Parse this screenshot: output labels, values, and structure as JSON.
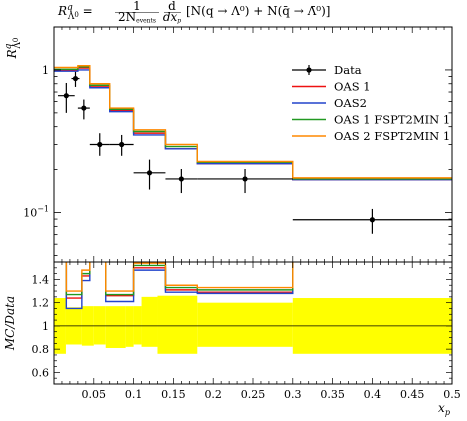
{
  "chart_data": [
    {
      "type": "line",
      "subtype": "step-histogram-with-data-points",
      "title": "R^q_{Λ0} = 1/(2N_events) dσ/dx_p [N(q→Λ0)+N(q̄→Λ̄0)]",
      "title_parts": {
        "lhs_main": "R",
        "lhs_sup": "q",
        "lhs_sub": "Λ",
        "lhs_subsup": "0",
        "eq": " = ",
        "frac_num": "1",
        "frac_den": "2N",
        "frac_den_sub": "events",
        "d_num": "d",
        "d_den": "dx",
        "d_den_sub": "p",
        "bracket_text": "[N(q → Λ⁰) + N(q̄ → Λ̄⁰)]"
      },
      "ylabel": "R^q_{Λ0}",
      "ylabel_main": "R",
      "ylabel_sup": "q",
      "ylabel_sub": "Λ",
      "ylabel_subsup": "0",
      "yscale": "log",
      "ylim": [
        0.045,
        2.0
      ],
      "xlim": [
        0.0,
        0.5
      ],
      "y_ticks": [
        {
          "value": 1.0,
          "label": "1"
        },
        {
          "value": 0.1,
          "label": "10",
          "exp": "−1"
        }
      ],
      "legend_placement": "top-right",
      "bin_edges": [
        0.0,
        0.03,
        0.045,
        0.07,
        0.1,
        0.14,
        0.18,
        0.3,
        0.5
      ],
      "data": {
        "name": "Data",
        "color": "#000000",
        "points": [
          {
            "x": 0.0155,
            "y": 0.66,
            "xerr": [
              0.0105,
              0.0105
            ],
            "yerr": [
              0.16,
              0.15
            ]
          },
          {
            "x": 0.027,
            "y": 0.87,
            "xerr": [
              0.005,
              0.005
            ],
            "yerr": [
              0.11,
              0.1
            ]
          },
          {
            "x": 0.0375,
            "y": 0.54,
            "xerr": [
              0.0075,
              0.0075
            ],
            "yerr": [
              0.09,
              0.08
            ]
          },
          {
            "x": 0.0575,
            "y": 0.3,
            "xerr": [
              0.0125,
              0.0125
            ],
            "yerr": [
              0.05,
              0.06
            ]
          },
          {
            "x": 0.085,
            "y": 0.3,
            "xerr": [
              0.015,
              0.015
            ],
            "yerr": [
              0.05,
              0.05
            ]
          },
          {
            "x": 0.12,
            "y": 0.19,
            "xerr": [
              0.02,
              0.02
            ],
            "yerr": [
              0.045,
              0.045
            ]
          },
          {
            "x": 0.16,
            "y": 0.172,
            "xerr": [
              0.02,
              0.02
            ],
            "yerr": [
              0.035,
              0.03
            ]
          },
          {
            "x": 0.24,
            "y": 0.172,
            "xerr": [
              0.06,
              0.06
            ],
            "yerr": [
              0.035,
              0.03
            ]
          },
          {
            "x": 0.4,
            "y": 0.089,
            "xerr": [
              0.1,
              0.1
            ],
            "yerr": [
              0.018,
              0.017
            ]
          }
        ]
      },
      "series": [
        {
          "name": "OAS 1",
          "color": "#ee1111",
          "values": [
            1.0,
            1.03,
            0.77,
            0.52,
            0.36,
            0.28,
            0.22,
            0.17
          ]
        },
        {
          "name": "OAS2",
          "color": "#2244cc",
          "values": [
            0.98,
            1.0,
            0.75,
            0.51,
            0.35,
            0.28,
            0.22,
            0.17
          ]
        },
        {
          "name": "OAS 1 FSPT2MIN 1",
          "color": "#229922",
          "values": [
            1.01,
            1.05,
            0.78,
            0.53,
            0.37,
            0.29,
            0.225,
            0.172
          ]
        },
        {
          "name": "OAS 2 FSPT2MIN 1",
          "color": "#ff8800",
          "values": [
            1.04,
            1.07,
            0.8,
            0.54,
            0.38,
            0.3,
            0.228,
            0.175
          ]
        }
      ]
    },
    {
      "type": "line",
      "subtype": "ratio-panel",
      "ylabel": "MC/Data",
      "xlabel": "x_p",
      "xlabel_main": "x",
      "xlabel_sub": "p",
      "xlim": [
        0.0,
        0.5
      ],
      "ylim": [
        0.5,
        1.55
      ],
      "y_ticks": [
        {
          "value": 0.6,
          "label": "0.6"
        },
        {
          "value": 0.8,
          "label": "0.8"
        },
        {
          "value": 1.0,
          "label": "1"
        },
        {
          "value": 1.2,
          "label": "1.2"
        },
        {
          "value": 1.4,
          "label": "1.4"
        }
      ],
      "x_ticks": [
        {
          "value": 0.05,
          "label": "0.05"
        },
        {
          "value": 0.1,
          "label": "0.1"
        },
        {
          "value": 0.15,
          "label": "0.15"
        },
        {
          "value": 0.2,
          "label": "0.2"
        },
        {
          "value": 0.25,
          "label": "0.25"
        },
        {
          "value": 0.3,
          "label": "0.3"
        },
        {
          "value": 0.35,
          "label": "0.35"
        },
        {
          "value": 0.4,
          "label": "0.4"
        },
        {
          "value": 0.45,
          "label": "0.45"
        },
        {
          "value": 0.5,
          "label": "0.5"
        }
      ],
      "band_color": "#ffff00",
      "band_edges": [
        0.0,
        0.015,
        0.035,
        0.05,
        0.065,
        0.09,
        0.1,
        0.11,
        0.13,
        0.18,
        0.3,
        0.5
      ],
      "band": [
        [
          0.76,
          1.24
        ],
        [
          0.84,
          1.16
        ],
        [
          0.83,
          1.17
        ],
        [
          0.84,
          1.17
        ],
        [
          0.81,
          1.17
        ],
        [
          0.82,
          1.17
        ],
        [
          0.84,
          1.17
        ],
        [
          0.82,
          1.25
        ],
        [
          0.76,
          1.26
        ],
        [
          0.82,
          1.2
        ],
        [
          0.76,
          1.24
        ]
      ],
      "ratio_edges": [
        0.0,
        0.0155,
        0.035,
        0.045,
        0.065,
        0.1,
        0.14,
        0.18,
        0.3,
        0.5
      ],
      "series": [
        {
          "name": "OAS 1",
          "color": "#ee1111",
          "values": [
            null,
            1.24,
            1.43,
            null,
            1.26,
            1.5,
            1.31,
            1.29,
            null
          ]
        },
        {
          "name": "OAS2",
          "color": "#2244cc",
          "values": [
            null,
            1.15,
            1.39,
            null,
            1.21,
            1.48,
            1.29,
            1.28,
            null
          ]
        },
        {
          "name": "OAS 1 FSPT2MIN 1",
          "color": "#229922",
          "values": [
            null,
            1.27,
            1.45,
            null,
            1.27,
            1.52,
            1.33,
            1.31,
            null
          ]
        },
        {
          "name": "OAS 2 FSPT2MIN 1",
          "color": "#ff8800",
          "values": [
            null,
            1.3,
            1.48,
            null,
            1.3,
            1.54,
            1.35,
            1.33,
            null
          ]
        }
      ]
    }
  ]
}
